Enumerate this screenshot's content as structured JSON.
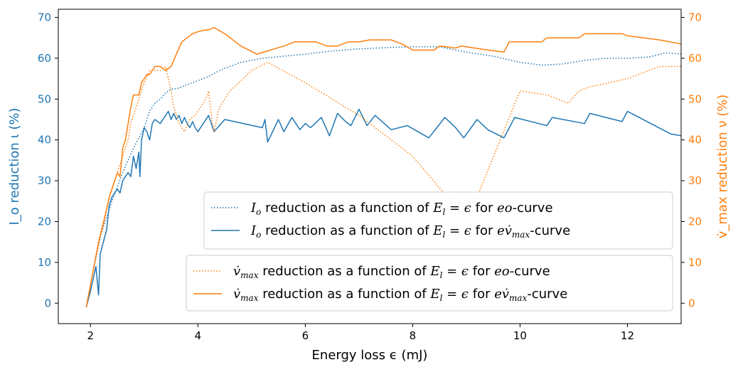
{
  "colors": {
    "left": "#1f77b4",
    "right": "#ff7f0e",
    "axis": "#000000"
  },
  "chart_data": {
    "type": "line",
    "xlabel": "Energy loss ϵ (mJ)",
    "ylabel_left": "I_o reduction ι (%)",
    "ylabel_right": "v̇_max reduction ν (%)",
    "xlim": [
      1.4,
      13.0
    ],
    "ylim_left": [
      -5,
      72
    ],
    "ylim_right": [
      -5,
      72
    ],
    "xticks": [
      "2",
      "4",
      "6",
      "8",
      "10",
      "12"
    ],
    "yticks_left": [
      "0",
      "10",
      "20",
      "30",
      "40",
      "50",
      "60",
      "70"
    ],
    "yticks_right": [
      "0",
      "10",
      "20",
      "30",
      "40",
      "50",
      "60",
      "70"
    ],
    "grid": false,
    "legend_left": {
      "placement": "lower-right, upper",
      "entries": [
        {
          "math": "I",
          "sub": "o",
          "text": " reduction as a function of ",
          "math2": "E",
          "sub2": "l",
          "eq": " = ϵ",
          "text2": " for ",
          "curve": "eo",
          "suffix": "-curve"
        },
        {
          "math": "I",
          "sub": "o",
          "text": " reduction as a function of ",
          "math2": "E",
          "sub2": "l",
          "eq": " = ϵ",
          "text2": " for ",
          "curve": "ev̇",
          "curvesub": "max",
          "suffix": "-curve"
        }
      ]
    },
    "legend_right": {
      "placement": "lower-right",
      "entries": [
        {
          "math": "v̇",
          "sub": "max",
          "text": " reduction as a function of ",
          "math2": "E",
          "sub2": "l",
          "eq": " = ϵ",
          "text2": " for ",
          "curve": "eo",
          "suffix": "-curve"
        },
        {
          "math": "v̇",
          "sub": "max",
          "text": " reduction as a function of ",
          "math2": "E",
          "sub2": "l",
          "eq": " = ϵ",
          "text2": " for ",
          "curve": "ev̇",
          "curvesub": "max",
          "suffix": "-curve"
        }
      ]
    },
    "series": [
      {
        "axis": "left",
        "color": "#1f77b4",
        "style": "dotted",
        "x": [
          1.92,
          2.05,
          2.2,
          2.4,
          2.6,
          2.8,
          3.0,
          3.1,
          3.2,
          3.3,
          3.4,
          3.5,
          3.6,
          3.8,
          4.0,
          4.2,
          4.4,
          4.8,
          5.2,
          5.6,
          6.0,
          6.5,
          7.0,
          7.5,
          8.0,
          8.5,
          9.0,
          9.5,
          10.0,
          10.4,
          10.8,
          11.2,
          11.6,
          12.0,
          12.4,
          12.7,
          13.0
        ],
        "y": [
          -1,
          8,
          17,
          25,
          32,
          38,
          43,
          47,
          49,
          50,
          51.5,
          52.5,
          52.5,
          53.5,
          54.5,
          55.5,
          57,
          59,
          60,
          60.5,
          61,
          61.8,
          62.3,
          62.6,
          62.8,
          62.8,
          61.5,
          60.5,
          59,
          58.3,
          58.6,
          59.5,
          60,
          60,
          60.3,
          61.3,
          61
        ]
      },
      {
        "axis": "left",
        "color": "#1f77b4",
        "style": "solid",
        "x": [
          1.92,
          2.0,
          2.05,
          2.1,
          2.15,
          2.18,
          2.22,
          2.3,
          2.35,
          2.4,
          2.5,
          2.55,
          2.6,
          2.7,
          2.75,
          2.8,
          2.85,
          2.9,
          2.92,
          2.95,
          3.0,
          3.05,
          3.1,
          3.15,
          3.2,
          3.3,
          3.4,
          3.45,
          3.5,
          3.55,
          3.6,
          3.65,
          3.7,
          3.75,
          3.8,
          3.85,
          3.9,
          3.95,
          4.0,
          4.1,
          4.2,
          4.3,
          4.5,
          5.2,
          5.25,
          5.3,
          5.5,
          5.6,
          5.75,
          5.9,
          6.0,
          6.1,
          6.3,
          6.45,
          6.6,
          6.75,
          6.85,
          7.0,
          7.15,
          7.3,
          7.6,
          7.9,
          8.1,
          8.3,
          8.6,
          8.8,
          8.95,
          9.2,
          9.4,
          9.7,
          9.9,
          10.5,
          10.6,
          11.2,
          11.3,
          11.9,
          12.0,
          12.8,
          13.0
        ],
        "y": [
          -1,
          3,
          6,
          9,
          2,
          12,
          14,
          18,
          24,
          26,
          28,
          27,
          30,
          32,
          31,
          36,
          33,
          37,
          31,
          40,
          43,
          42,
          40,
          44,
          45,
          44,
          46,
          47,
          45,
          46.5,
          45,
          46,
          44,
          45.5,
          44,
          43,
          44.5,
          43,
          42,
          44,
          46,
          42,
          45,
          43,
          45,
          39.5,
          45,
          42,
          45.5,
          42.5,
          44,
          43,
          45.5,
          41,
          46.5,
          44.5,
          43.5,
          47.5,
          43.5,
          46,
          42.5,
          43.5,
          42,
          40.5,
          45.5,
          43,
          40.5,
          45,
          42.5,
          40.5,
          45.5,
          43.5,
          45.5,
          44,
          46.5,
          44.5,
          47,
          41.5,
          41
        ]
      },
      {
        "axis": "right",
        "color": "#ff7f0e",
        "style": "dotted",
        "x": [
          1.92,
          2.05,
          2.2,
          2.35,
          2.5,
          2.6,
          2.7,
          2.75,
          2.8,
          2.9,
          3.0,
          3.1,
          3.2,
          3.3,
          3.4,
          3.5,
          3.55,
          3.65,
          3.75,
          3.85,
          3.95,
          4.05,
          4.15,
          4.2,
          4.25,
          4.3,
          4.4,
          4.6,
          5.0,
          5.3,
          6.0,
          7.0,
          8.0,
          8.9,
          9.2,
          10.0,
          10.5,
          10.9,
          11.1,
          11.3,
          12.0,
          12.6,
          13.0
        ],
        "y": [
          -1,
          8,
          18,
          26,
          32,
          36,
          40,
          44,
          46,
          50,
          54,
          57,
          57,
          57,
          58,
          52,
          48,
          44,
          42,
          45,
          46,
          48,
          50,
          52,
          46,
          42,
          48,
          52,
          57,
          59,
          54,
          46,
          36,
          22,
          26,
          52,
          51,
          49,
          52,
          53,
          55,
          58,
          58
        ]
      },
      {
        "axis": "right",
        "color": "#ff7f0e",
        "style": "solid",
        "x": [
          1.92,
          2.05,
          2.15,
          2.25,
          2.35,
          2.45,
          2.5,
          2.55,
          2.6,
          2.65,
          2.7,
          2.75,
          2.8,
          2.85,
          2.9,
          2.95,
          3.0,
          3.05,
          3.1,
          3.2,
          3.3,
          3.4,
          3.5,
          3.6,
          3.7,
          3.8,
          3.9,
          4.0,
          4.1,
          4.2,
          4.3,
          4.5,
          4.8,
          5.1,
          5.3,
          5.6,
          5.8,
          5.9,
          6.0,
          6.2,
          6.4,
          6.6,
          6.8,
          7.0,
          7.2,
          7.4,
          7.6,
          7.8,
          8.0,
          8.4,
          8.5,
          8.8,
          8.9,
          9.0,
          9.4,
          9.7,
          9.8,
          10.4,
          10.5,
          11.1,
          11.2,
          11.9,
          12.0,
          12.6,
          13.0
        ],
        "y": [
          -1,
          8,
          15,
          20,
          26,
          30,
          32,
          31,
          38,
          40,
          44,
          48,
          51,
          51,
          51,
          54,
          55,
          56,
          56,
          58,
          58,
          57,
          58,
          61,
          64,
          65,
          66,
          66.5,
          66.8,
          67,
          67.5,
          66,
          63,
          61,
          61.8,
          63,
          64,
          64,
          64,
          64,
          63,
          63,
          64,
          64,
          64.5,
          64.5,
          64.5,
          63.5,
          62,
          62,
          63,
          62.5,
          63,
          62.8,
          62,
          61.5,
          64,
          64,
          65,
          65,
          66,
          66,
          65.5,
          64.5,
          63.5
        ]
      }
    ]
  }
}
